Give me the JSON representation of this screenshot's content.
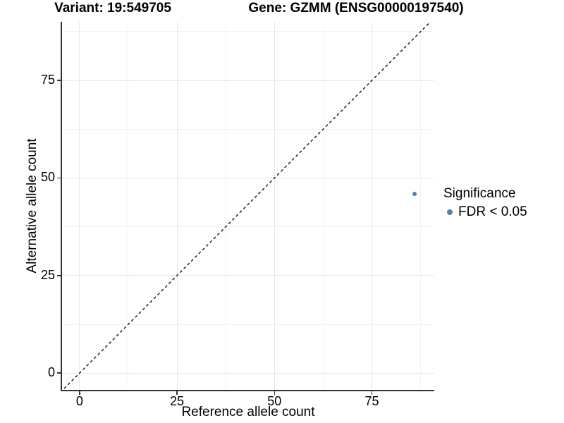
{
  "chart_data": {
    "type": "scatter",
    "title_left": "Variant: 19:549705",
    "title_right": "Gene: GZMM (ENSG00000197540)",
    "xlabel": "Reference allele count",
    "ylabel": "Alternative allele count",
    "xlim": [
      -4.5,
      91
    ],
    "ylim": [
      -4.3,
      90
    ],
    "x_major_ticks": [
      0,
      25,
      50,
      75
    ],
    "y_major_ticks": [
      0,
      25,
      50,
      75
    ],
    "x_minor_ticks": [
      12.5,
      37.5,
      62.5,
      87.5
    ],
    "y_minor_ticks": [
      12.5,
      37.5,
      62.5,
      87.5
    ],
    "grid": true,
    "points": [
      {
        "x": 86,
        "y": 46,
        "series": "FDR < 0.05"
      }
    ],
    "reference_line": {
      "equation": "y = x",
      "style": "dashed"
    },
    "legend": {
      "title": "Significance",
      "position": "right",
      "entries": [
        {
          "label": "FDR < 0.05",
          "color": "#5381AF"
        }
      ]
    },
    "colors": {
      "point": "#5381AF",
      "grid_major": "#e7e7e7",
      "grid_minor": "#f2f2f2",
      "axis_line": "#333333",
      "reference_line": "#111111",
      "text": "#000000"
    }
  }
}
